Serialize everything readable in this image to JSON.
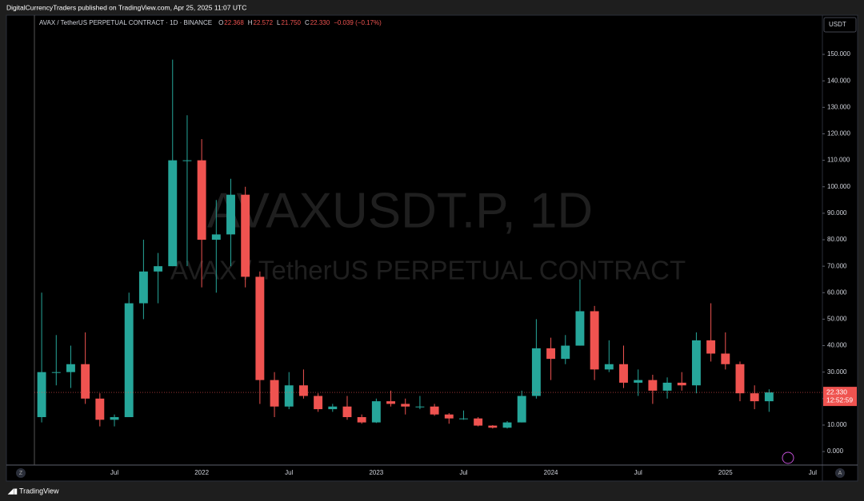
{
  "header": {
    "publisher": "DigitalCurrencyTraders published on TradingView.com, Apr 25, 2025 11:07 UTC",
    "brand": "TradingView"
  },
  "chart_data": {
    "type": "candlestick",
    "title": "AVAX / TetherUS PERPETUAL CONTRACT · 1D · BINANCE",
    "ohlc_legend": [
      {
        "key": "O",
        "text": "22.368"
      },
      {
        "key": "H",
        "text": "22.572"
      },
      {
        "key": "L",
        "text": "21.750"
      },
      {
        "key": "C",
        "text": "22.330"
      }
    ],
    "change": "−0.039 (−0.17%)",
    "watermark": "AVAXUSDT.P, 1D",
    "watermark_subtitle": "AVAX / TetherUS PERPETUAL CONTRACT",
    "y_unit": "USDT",
    "up_color": "#26a69a",
    "down_color": "#ef5350",
    "categories": [
      null,
      null,
      null,
      null,
      null,
      "Jul",
      null,
      null,
      null,
      null,
      null,
      "2022",
      null,
      null,
      null,
      null,
      null,
      "Jul",
      null,
      null,
      null,
      null,
      null,
      "2023",
      null,
      null,
      null,
      null,
      null,
      "Jul",
      null,
      null,
      null,
      null,
      null,
      "2024",
      null,
      null,
      null,
      null,
      null,
      "Jul",
      null,
      null,
      null,
      null,
      null,
      "2025",
      null,
      null,
      null,
      null,
      null,
      "Jul"
    ],
    "open": [
      13,
      30,
      30,
      33,
      20,
      12,
      13,
      56,
      68,
      70,
      110,
      110,
      80,
      82,
      97,
      66,
      27,
      17,
      25,
      21,
      16,
      17,
      13,
      11,
      19,
      18,
      17,
      17,
      14,
      12.5,
      12.5,
      9.8,
      9,
      11,
      21,
      39,
      35,
      40,
      53,
      31,
      33,
      26,
      27,
      23,
      26,
      25,
      42,
      37,
      33,
      22,
      19,
      null,
      null,
      null
    ],
    "high": [
      60,
      44,
      40,
      45,
      22,
      14,
      60,
      80,
      75,
      148,
      127,
      118,
      95,
      103,
      100,
      68,
      30,
      30,
      31,
      22,
      18,
      21,
      14,
      20,
      23,
      20,
      21,
      18,
      14.5,
      15.5,
      13,
      10,
      11.5,
      23,
      50,
      43,
      44,
      65,
      55,
      42,
      40,
      31,
      29,
      28,
      30,
      45,
      56,
      45,
      34,
      25,
      23.5,
      null,
      null,
      null
    ],
    "low": [
      11,
      25,
      24,
      18,
      9.5,
      9.5,
      13,
      50,
      56,
      70,
      70,
      62,
      60,
      70,
      62,
      18,
      13,
      16,
      20,
      15,
      15,
      12,
      10.5,
      10.8,
      17,
      14,
      16,
      13.5,
      10.5,
      12,
      9.5,
      8.7,
      8.7,
      11,
      20,
      27,
      33,
      40,
      27,
      30,
      24,
      21,
      18,
      20,
      23,
      22,
      34,
      31,
      19,
      16,
      15,
      null,
      null,
      null
    ],
    "close": [
      30,
      30,
      33,
      20,
      12,
      13,
      56,
      68,
      70,
      110,
      110,
      80,
      82,
      97,
      66,
      27,
      17,
      25,
      21,
      16,
      17,
      13,
      11,
      19,
      18,
      17,
      17,
      14,
      12.5,
      12.5,
      9.8,
      9,
      11,
      21,
      39,
      35,
      40,
      53,
      31,
      33,
      26,
      27,
      23,
      26,
      25,
      42,
      37,
      33,
      22,
      19,
      22.33,
      null,
      null,
      null
    ],
    "ylim": [
      -5.1,
      163.9
    ],
    "yticks": [
      {
        "value": 0,
        "label": "0.000"
      },
      {
        "value": 10,
        "label": "10.000"
      },
      {
        "value": 20,
        "label": "20.000"
      },
      {
        "value": 30,
        "label": "30.000"
      },
      {
        "value": 40,
        "label": "40.000"
      },
      {
        "value": 50,
        "label": "50.000"
      },
      {
        "value": 60,
        "label": "60.000"
      },
      {
        "value": 70,
        "label": "70.000"
      },
      {
        "value": 80,
        "label": "80.000"
      },
      {
        "value": 90,
        "label": "90.000"
      },
      {
        "value": 100,
        "label": "100.000"
      },
      {
        "value": 110,
        "label": "110.000"
      },
      {
        "value": 120,
        "label": "120.000"
      },
      {
        "value": 130,
        "label": "130.000"
      },
      {
        "value": 140,
        "label": "140.000"
      },
      {
        "value": 150,
        "label": "150.000"
      }
    ],
    "last_price": {
      "value": 22.33,
      "label": "22.330"
    },
    "countdown": "12:52:59"
  }
}
